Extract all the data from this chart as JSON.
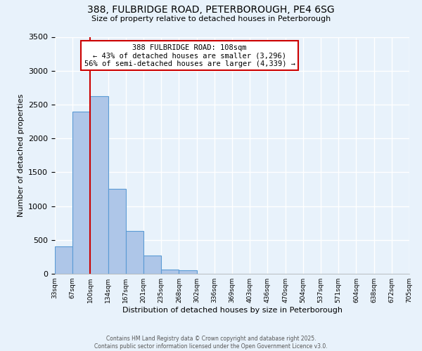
{
  "title": "388, FULBRIDGE ROAD, PETERBOROUGH, PE4 6SG",
  "subtitle": "Size of property relative to detached houses in Peterborough",
  "xlabel": "Distribution of detached houses by size in Peterborough",
  "ylabel": "Number of detached properties",
  "bar_values": [
    400,
    2400,
    2620,
    1250,
    630,
    270,
    60,
    50,
    0,
    0,
    0,
    0,
    0,
    0,
    0,
    0,
    0,
    0,
    0,
    0
  ],
  "bar_labels": [
    "33sqm",
    "67sqm",
    "100sqm",
    "134sqm",
    "167sqm",
    "201sqm",
    "235sqm",
    "268sqm",
    "302sqm",
    "336sqm",
    "369sqm",
    "403sqm",
    "436sqm",
    "470sqm",
    "504sqm",
    "537sqm",
    "571sqm",
    "604sqm",
    "638sqm",
    "672sqm",
    "705sqm"
  ],
  "bar_color": "#aec6e8",
  "bar_edge_color": "#5b9bd5",
  "bar_width": 1.0,
  "vline_x": 2,
  "vline_color": "#cc0000",
  "annotation_title": "388 FULBRIDGE ROAD: 108sqm",
  "annotation_line1": "← 43% of detached houses are smaller (3,296)",
  "annotation_line2": "56% of semi-detached houses are larger (4,339) →",
  "annotation_box_color": "#ffffff",
  "annotation_box_edge_color": "#cc0000",
  "ylim": [
    0,
    3500
  ],
  "yticks": [
    0,
    500,
    1000,
    1500,
    2000,
    2500,
    3000,
    3500
  ],
  "background_color": "#e8f2fb",
  "grid_color": "#ffffff",
  "footer_line1": "Contains HM Land Registry data © Crown copyright and database right 2025.",
  "footer_line2": "Contains public sector information licensed under the Open Government Licence v3.0."
}
